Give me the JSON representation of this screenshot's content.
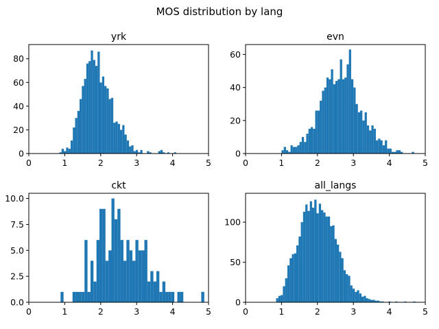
{
  "figure": {
    "suptitle": "MOS distribution by lang"
  },
  "chart_data": [
    {
      "type": "bar",
      "title": "yrk",
      "xlim": [
        0,
        5
      ],
      "ylim": [
        0,
        92
      ],
      "xticks": [
        0,
        1,
        2,
        3,
        4,
        5
      ],
      "yticks": [
        0,
        20,
        40,
        60,
        80
      ],
      "bin_start": 0.85,
      "bin_width": 0.0625,
      "values": [
        1,
        4,
        2,
        5,
        4,
        11,
        22,
        30,
        36,
        46,
        57,
        63,
        76,
        78,
        87,
        79,
        74,
        86,
        60,
        65,
        57,
        55,
        46,
        47,
        26,
        27,
        25,
        20,
        24,
        16,
        11,
        6,
        7,
        2,
        3,
        1,
        3,
        0,
        0,
        2,
        1,
        0,
        0,
        0,
        2,
        3,
        1,
        0,
        1,
        0,
        0,
        1
      ]
    },
    {
      "type": "bar",
      "title": "evn",
      "xlim": [
        0,
        5
      ],
      "ylim": [
        0,
        66
      ],
      "xticks": [
        0,
        1,
        2,
        3,
        4,
        5
      ],
      "yticks": [
        0,
        20,
        40,
        60
      ],
      "bin_start": 1.0,
      "bin_width": 0.0625,
      "values": [
        2,
        4,
        2,
        1,
        5,
        4,
        4,
        5,
        7,
        10,
        7,
        12,
        15,
        16,
        15,
        26,
        26,
        32,
        38,
        40,
        46,
        45,
        51,
        42,
        44,
        45,
        57,
        45,
        46,
        54,
        63,
        45,
        40,
        30,
        25,
        26,
        20,
        25,
        17,
        14,
        17,
        15,
        8,
        9,
        8,
        5,
        8,
        3,
        3,
        1,
        1,
        2,
        2,
        1,
        0,
        0,
        0,
        0,
        1
      ]
    },
    {
      "type": "bar",
      "title": "ckt",
      "xlim": [
        0,
        5
      ],
      "ylim": [
        0,
        10.5
      ],
      "xticks": [
        0,
        1,
        2,
        3,
        4,
        5
      ],
      "yticks": [
        0.0,
        2.5,
        5.0,
        7.5,
        10.0
      ],
      "ytick_labels": [
        "0.0",
        "2.5",
        "5.0",
        "7.5",
        "10.0"
      ],
      "bin_start": 0.8,
      "bin_width": 0.0833,
      "values": [
        0,
        1,
        0,
        0,
        0,
        1,
        1,
        1,
        1,
        6,
        1,
        4,
        2,
        6,
        9,
        9,
        4,
        5,
        10,
        8,
        9,
        6,
        4,
        6,
        5,
        4,
        6,
        5,
        5,
        6,
        2,
        3,
        2,
        3,
        1,
        2,
        1,
        1,
        1,
        0,
        1,
        1,
        0,
        0,
        0,
        0,
        0,
        0,
        1
      ]
    },
    {
      "type": "bar",
      "title": "all_langs",
      "xlim": [
        0,
        5
      ],
      "ylim": [
        0,
        136
      ],
      "xticks": [
        0,
        1,
        2,
        3,
        4,
        5
      ],
      "yticks": [
        0,
        50,
        100
      ],
      "bin_start": 0.85,
      "bin_width": 0.0625,
      "values": [
        5,
        8,
        9,
        20,
        30,
        46,
        55,
        60,
        61,
        71,
        82,
        100,
        113,
        122,
        114,
        126,
        118,
        128,
        111,
        123,
        115,
        112,
        107,
        107,
        95,
        96,
        79,
        72,
        63,
        55,
        40,
        35,
        33,
        21,
        17,
        13,
        15,
        11,
        7,
        8,
        5,
        4,
        3,
        3,
        2,
        2,
        1,
        1,
        0,
        0,
        1,
        0,
        0,
        1,
        0,
        0,
        0,
        1,
        0,
        0,
        0,
        1
      ]
    }
  ]
}
